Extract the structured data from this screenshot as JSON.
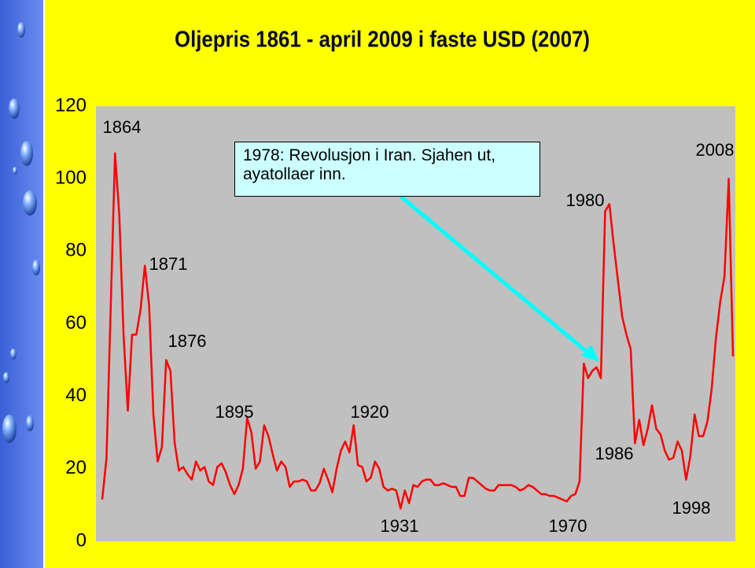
{
  "chart_data": {
    "type": "line",
    "title": "Oljepris 1861 - april 2009 i faste USD (2007)",
    "x": [
      1861,
      1862,
      1863,
      1864,
      1865,
      1866,
      1867,
      1868,
      1869,
      1870,
      1871,
      1872,
      1873,
      1874,
      1875,
      1876,
      1877,
      1878,
      1879,
      1880,
      1881,
      1882,
      1883,
      1884,
      1885,
      1886,
      1887,
      1888,
      1889,
      1890,
      1891,
      1892,
      1893,
      1894,
      1895,
      1896,
      1897,
      1898,
      1899,
      1900,
      1901,
      1902,
      1903,
      1904,
      1905,
      1906,
      1907,
      1908,
      1909,
      1910,
      1911,
      1912,
      1913,
      1914,
      1915,
      1916,
      1917,
      1918,
      1919,
      1920,
      1921,
      1922,
      1923,
      1924,
      1925,
      1926,
      1927,
      1928,
      1929,
      1930,
      1931,
      1932,
      1933,
      1934,
      1935,
      1936,
      1937,
      1938,
      1939,
      1940,
      1941,
      1942,
      1943,
      1944,
      1945,
      1946,
      1947,
      1948,
      1949,
      1950,
      1951,
      1952,
      1953,
      1954,
      1955,
      1956,
      1957,
      1958,
      1959,
      1960,
      1961,
      1962,
      1963,
      1964,
      1965,
      1966,
      1967,
      1968,
      1969,
      1970,
      1971,
      1972,
      1973,
      1974,
      1975,
      1976,
      1977,
      1978,
      1979,
      1980,
      1981,
      1982,
      1983,
      1984,
      1985,
      1986,
      1987,
      1988,
      1989,
      1990,
      1991,
      1992,
      1993,
      1994,
      1995,
      1996,
      1997,
      1998,
      1999,
      2000,
      2001,
      2002,
      2003,
      2004,
      2005,
      2006,
      2007,
      2008,
      2009
    ],
    "series": [
      {
        "color": "#ff0000",
        "values": [
          11.5,
          23,
          65,
          107,
          90,
          57,
          36,
          57,
          57,
          64,
          76,
          65,
          35,
          22,
          26,
          50,
          47,
          27,
          19.5,
          20.5,
          18.5,
          17,
          22,
          19.5,
          20.5,
          16.5,
          15.5,
          20.5,
          21.5,
          19,
          15.5,
          13,
          15.5,
          20,
          34,
          30,
          20,
          22,
          32,
          29,
          24,
          19.5,
          22,
          20.5,
          15,
          16.5,
          16.5,
          17,
          16.5,
          14,
          14,
          16,
          20,
          17,
          13.5,
          20,
          25,
          27.5,
          24.5,
          32,
          21,
          20.5,
          16.5,
          17.5,
          22,
          20,
          15,
          14,
          14.5,
          14,
          9,
          14,
          10.5,
          15.5,
          15,
          16.5,
          17,
          17,
          15.5,
          15.5,
          16,
          15.5,
          15,
          15,
          12.5,
          12.5,
          17.5,
          17.5,
          16.5,
          15.5,
          14.5,
          14,
          14,
          15.5,
          15.5,
          15.5,
          15.5,
          15,
          14,
          14.5,
          15.5,
          15,
          14,
          13,
          13,
          12.5,
          12.5,
          12,
          11.5,
          11,
          12.5,
          13,
          16.5,
          49,
          45,
          47,
          48,
          45,
          91,
          93,
          82,
          72,
          62,
          57,
          53,
          27,
          33.5,
          26.5,
          31,
          37.5,
          31,
          29.5,
          25,
          22.5,
          23,
          27.5,
          25,
          17,
          23.5,
          35,
          29,
          29,
          33,
          42,
          56,
          66,
          73,
          100,
          51
        ]
      }
    ],
    "xlim": [
      1861,
      2009
    ],
    "ylim": [
      0,
      120
    ],
    "yticks": [
      0,
      20,
      40,
      60,
      80,
      100,
      120
    ],
    "grid": false,
    "annotations": [
      "1864",
      "1871",
      "1876",
      "1895",
      "1920",
      "1931",
      "1970",
      "1980",
      "1986",
      "1998",
      "2008"
    ],
    "callout": "1978: Revolusjon i Iran. Sjahen ut, ayatollaer inn."
  }
}
